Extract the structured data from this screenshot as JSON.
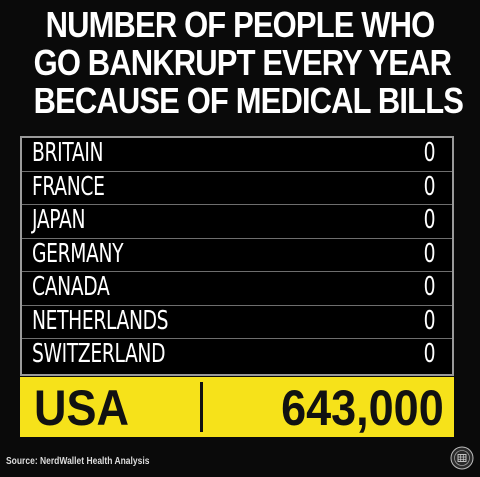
{
  "chart_data": {
    "type": "table",
    "title_lines": [
      "NUMBER OF PEOPLE WHO",
      "GO BANKRUPT EVERY YEAR",
      "BECAUSE OF MEDICAL BILLS"
    ],
    "rows": [
      {
        "country": "BRITAIN",
        "value": "0"
      },
      {
        "country": "FRANCE",
        "value": "0"
      },
      {
        "country": "JAPAN",
        "value": "0"
      },
      {
        "country": "GERMANY",
        "value": "0"
      },
      {
        "country": "CANADA",
        "value": "0"
      },
      {
        "country": "NETHERLANDS",
        "value": "0"
      },
      {
        "country": "SWITZERLAND",
        "value": "0"
      }
    ],
    "highlight_row": {
      "country": "USA",
      "value": "643,000"
    },
    "source": "Source: NerdWallet Health Analysis"
  },
  "colors": {
    "background": "#0a0a0a",
    "text": "#ffffff",
    "highlight": "#f6e21a",
    "highlight_text": "#111111",
    "border": "#9a9a9a"
  },
  "icons": {
    "corner_seal": "circular-seal-icon"
  }
}
